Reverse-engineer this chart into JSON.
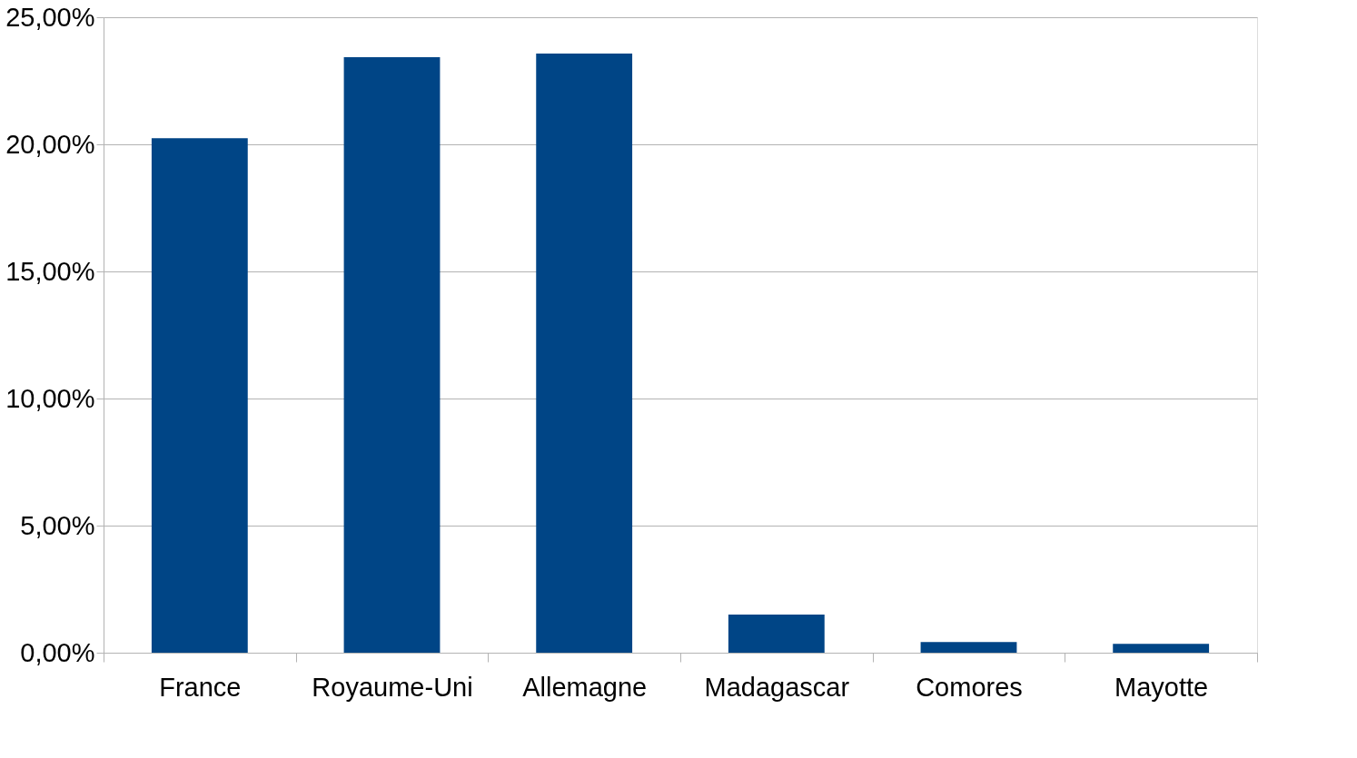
{
  "chart_data": {
    "type": "bar",
    "categories": [
      "France",
      "Royaume-Uni",
      "Allemagne",
      "Madagascar",
      "Comores",
      "Mayotte"
    ],
    "values": [
      20.24,
      23.43,
      23.57,
      1.5,
      0.42,
      0.35
    ],
    "color": "#004586",
    "ylim": [
      0,
      25
    ],
    "yticks": [
      {
        "value": 0,
        "label": "0,00%"
      },
      {
        "value": 5,
        "label": "5,00%"
      },
      {
        "value": 10,
        "label": "10,00%"
      },
      {
        "value": 15,
        "label": "15,00%"
      },
      {
        "value": 20,
        "label": "20,00%"
      },
      {
        "value": 25,
        "label": "25,00%"
      }
    ],
    "grid": "y"
  }
}
